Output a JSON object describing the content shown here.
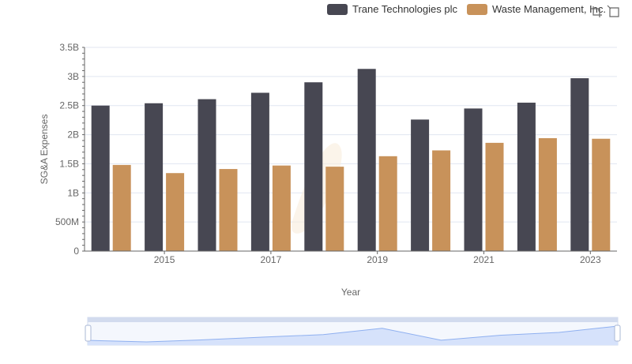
{
  "legend": {
    "series": [
      {
        "name": "Trane Technologies plc",
        "color": "#474752"
      },
      {
        "name": "Waste Management, Inc.",
        "color": "#c8925a"
      }
    ]
  },
  "toolbox": {
    "icons": [
      "zoom-icon",
      "restore-icon"
    ]
  },
  "chart_data": {
    "type": "bar",
    "categories": [
      "2014",
      "2015",
      "2016",
      "2017",
      "2018",
      "2019",
      "2020",
      "2021",
      "2022",
      "2023"
    ],
    "x_tick_labels": [
      "2015",
      "2017",
      "2019",
      "2021",
      "2023"
    ],
    "xlabel": "Year",
    "ylabel": "SG&A Expenses",
    "y_ticks": [
      "0",
      "500M",
      "1B",
      "1.5B",
      "2B",
      "2.5B",
      "3B",
      "3.5B"
    ],
    "ylim": [
      0,
      3500000000
    ],
    "grid": true,
    "legend_position": "top-right",
    "series": [
      {
        "name": "Trane Technologies plc",
        "color": "#474752",
        "values": [
          2500000000,
          2540000000,
          2610000000,
          2720000000,
          2900000000,
          3130000000,
          2260000000,
          2450000000,
          2550000000,
          2970000000
        ]
      },
      {
        "name": "Waste Management, Inc.",
        "color": "#c8925a",
        "values": [
          1480000000,
          1340000000,
          1410000000,
          1470000000,
          1450000000,
          1630000000,
          1730000000,
          1860000000,
          1940000000,
          1930000000
        ]
      }
    ]
  }
}
